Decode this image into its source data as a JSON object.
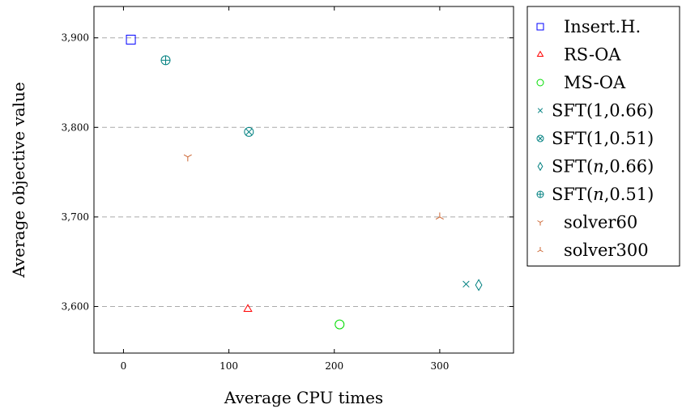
{
  "chart_data": {
    "type": "scatter",
    "xlabel": "Average CPU times",
    "ylabel": "Average objective value",
    "xlim": [
      -28,
      370
    ],
    "ylim": [
      3548,
      3935
    ],
    "x_ticks": [
      0,
      100,
      200,
      300
    ],
    "x_tick_labels": [
      "0",
      "100",
      "200",
      "300"
    ],
    "y_ticks": [
      3600,
      3700,
      3800,
      3900
    ],
    "y_tick_labels": [
      "3,600",
      "3,700",
      "3,800",
      "3,900"
    ],
    "grid": "horizontal dashed",
    "legend_position": "outside-right",
    "series": [
      {
        "name": "Insert.H.",
        "marker": "square",
        "color": "#0000ff",
        "legend_parts": [
          {
            "t": "Insert.H.",
            "i": false
          }
        ],
        "x": [
          7
        ],
        "y": [
          3898
        ]
      },
      {
        "name": "RS-OA",
        "marker": "triangle",
        "color": "#ff0000",
        "legend_parts": [
          {
            "t": "RS-OA",
            "i": false
          }
        ],
        "x": [
          118
        ],
        "y": [
          3597
        ]
      },
      {
        "name": "MS-OA",
        "marker": "circle",
        "color": "#00dd00",
        "legend_parts": [
          {
            "t": "MS-OA",
            "i": false
          }
        ],
        "x": [
          205
        ],
        "y": [
          3580
        ]
      },
      {
        "name": "SFT(1,0.66)",
        "marker": "x",
        "color": "#008080",
        "legend_parts": [
          {
            "t": "SFT(1,0.66)",
            "i": false
          }
        ],
        "x": [
          325
        ],
        "y": [
          3625
        ]
      },
      {
        "name": "SFT(1,0.51)",
        "marker": "otimes",
        "color": "#008080",
        "legend_parts": [
          {
            "t": "SFT(1,0.51)",
            "i": false
          }
        ],
        "x": [
          119
        ],
        "y": [
          3795
        ]
      },
      {
        "name": "SFT(n,0.66)",
        "marker": "diamond",
        "color": "#008080",
        "legend_parts": [
          {
            "t": "SFT(",
            "i": false
          },
          {
            "t": "n",
            "i": true
          },
          {
            "t": ",0.66)",
            "i": false
          }
        ],
        "x": [
          337
        ],
        "y": [
          3624
        ]
      },
      {
        "name": "SFT(n,0.51)",
        "marker": "oplus",
        "color": "#008080",
        "legend_parts": [
          {
            "t": "SFT(",
            "i": false
          },
          {
            "t": "n",
            "i": true
          },
          {
            "t": ",0.51)",
            "i": false
          }
        ],
        "x": [
          40
        ],
        "y": [
          3875
        ]
      },
      {
        "name": "solver60",
        "marker": "tri-down",
        "color": "#cc6633",
        "legend_parts": [
          {
            "t": "solver60",
            "i": false
          }
        ],
        "x": [
          61
        ],
        "y": [
          3767
        ]
      },
      {
        "name": "solver300",
        "marker": "tri-up",
        "color": "#cc6633",
        "legend_parts": [
          {
            "t": "solver300",
            "i": false
          }
        ],
        "x": [
          300
        ],
        "y": [
          3700
        ]
      }
    ]
  }
}
